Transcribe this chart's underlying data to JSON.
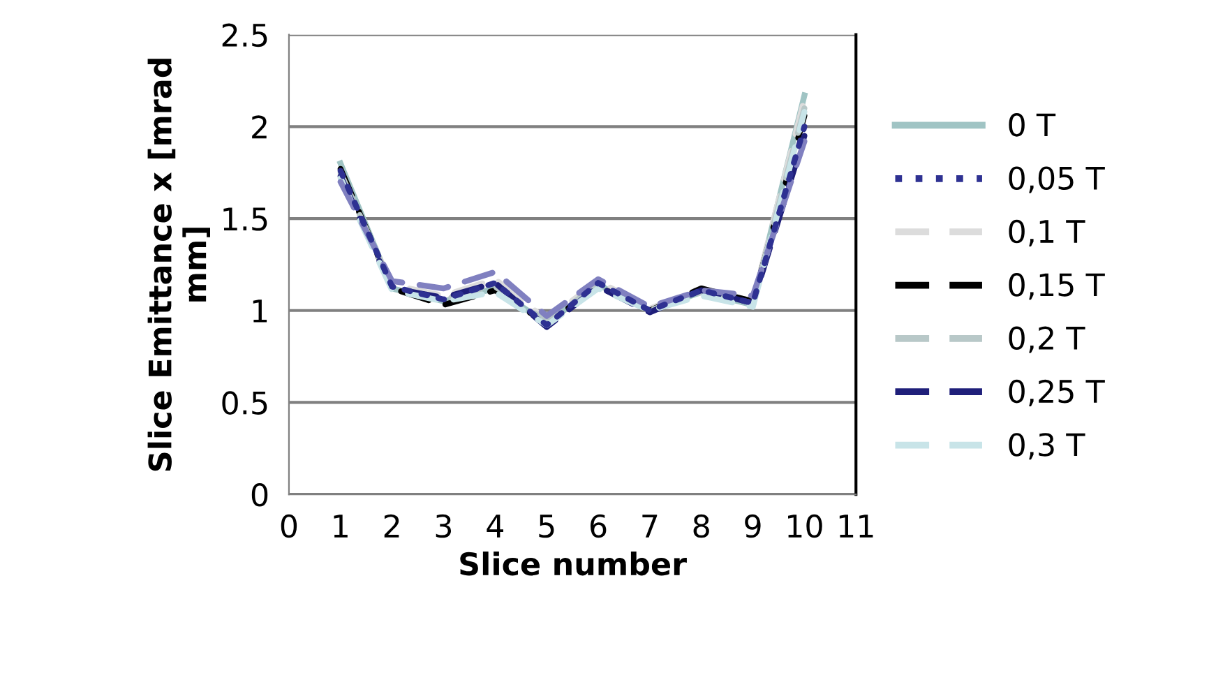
{
  "chart_data": {
    "type": "line",
    "xlabel": "Slice number",
    "ylabel": "Slice Emittance x [mrad\nmm]",
    "x": [
      1,
      2,
      3,
      4,
      5,
      6,
      7,
      8,
      9,
      10
    ],
    "xlim": [
      0,
      11
    ],
    "xticks": [
      0,
      1,
      2,
      3,
      4,
      5,
      6,
      7,
      8,
      9,
      10,
      11
    ],
    "ylim": [
      0,
      2.5
    ],
    "yticks": [
      0,
      0.5,
      1,
      1.5,
      2,
      2.5
    ],
    "grid": "y",
    "legend": "right",
    "marker": "none",
    "series": [
      {
        "name": "0 T",
        "color": "#a0c4c4",
        "line_style": "solid",
        "values": [
          1.8,
          1.12,
          1.05,
          1.12,
          0.93,
          1.14,
          1.0,
          1.1,
          1.03,
          2.17
        ]
      },
      {
        "name": "0,05 T",
        "color": "#2e3192",
        "line_style": "dotted",
        "values": [
          1.76,
          1.13,
          1.06,
          1.15,
          0.92,
          1.15,
          1.0,
          1.11,
          1.04,
          2.0
        ]
      },
      {
        "name": "0,1 T",
        "color": "#dcdcdc",
        "line_style": "dashed",
        "values": [
          1.74,
          1.14,
          1.08,
          1.17,
          0.95,
          1.16,
          1.01,
          1.12,
          1.05,
          2.15
        ]
      },
      {
        "name": "0,15 T",
        "color": "#000000",
        "line_style": "dashed",
        "values": [
          1.77,
          1.12,
          1.03,
          1.11,
          0.93,
          1.13,
          1.0,
          1.12,
          1.05,
          2.06
        ]
      },
      {
        "name": "0,2 T",
        "color": "#b8c8c8",
        "line_style": "dashed",
        "values": [
          1.75,
          1.13,
          1.06,
          1.13,
          0.94,
          1.14,
          1.0,
          1.1,
          1.04,
          2.1
        ]
      },
      {
        "name": "0,25 T",
        "color": "#1f1f7a",
        "line_style": "dashed",
        "values": [
          1.73,
          1.12,
          1.07,
          1.15,
          0.91,
          1.13,
          0.99,
          1.11,
          1.04,
          1.95
        ]
      },
      {
        "name": "0,3 T",
        "color": "#c8e4e8",
        "line_style": "dashed",
        "values": [
          1.72,
          1.11,
          1.05,
          1.1,
          0.92,
          1.12,
          1.0,
          1.08,
          1.02,
          2.08
        ]
      },
      {
        "color": "#8080c0",
        "line_style": "dashed",
        "values": [
          1.7,
          1.16,
          1.12,
          1.21,
          0.97,
          1.17,
          1.02,
          1.11,
          1.08,
          1.92
        ]
      }
    ]
  }
}
